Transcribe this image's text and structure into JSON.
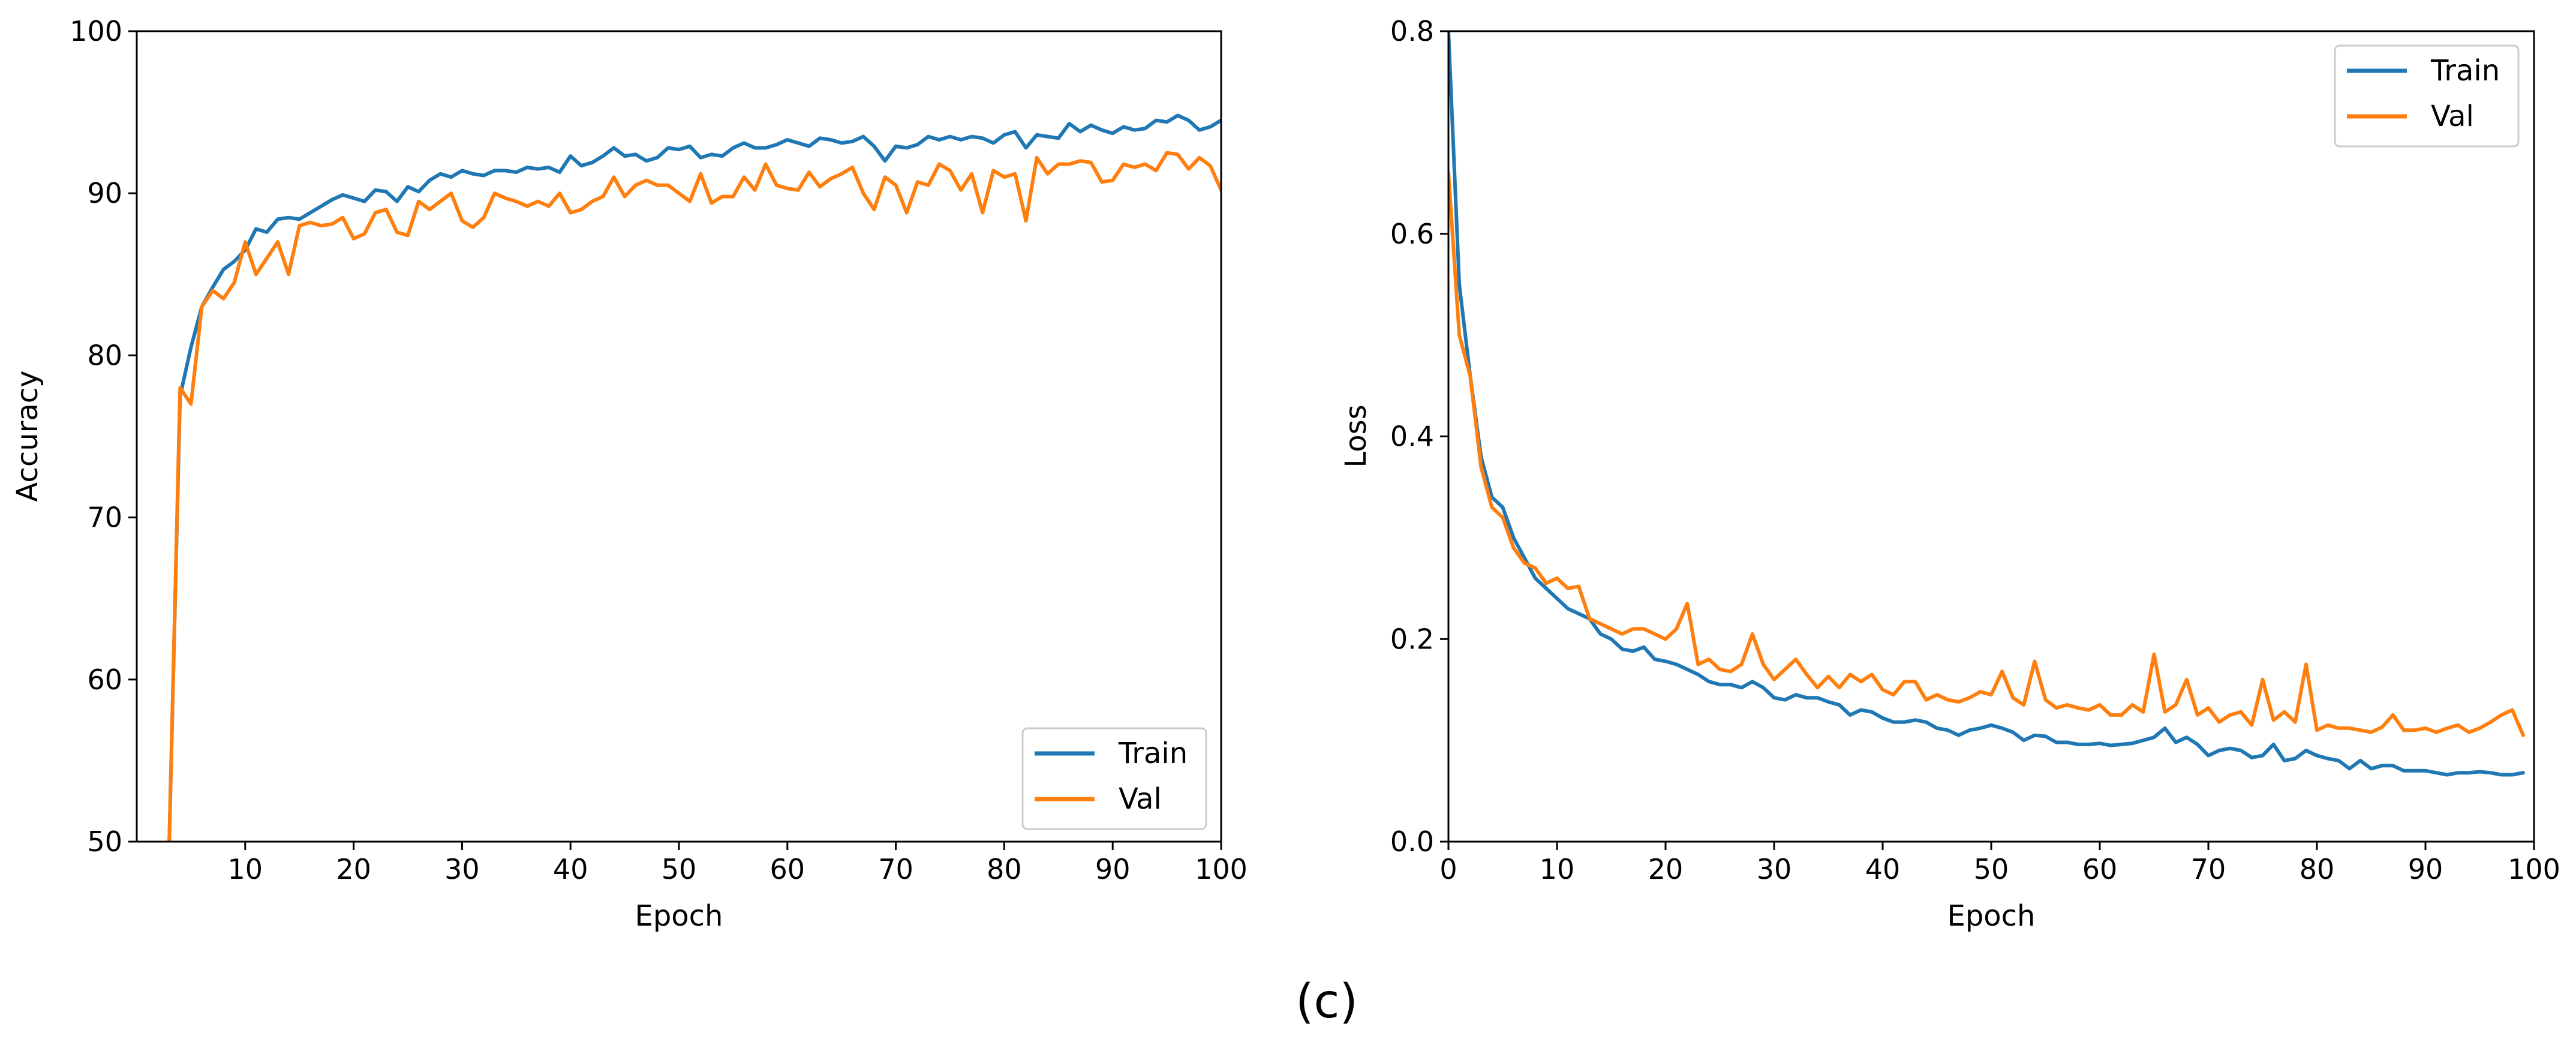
{
  "colors": {
    "train": "#1f77b4",
    "val": "#ff7f0e",
    "axis": "#000000",
    "background": "#ffffff"
  },
  "caption": "(c)",
  "chart_data": [
    {
      "type": "line",
      "title": "",
      "xlabel": "Epoch",
      "ylabel": "Accuracy",
      "xlim": [
        0,
        100
      ],
      "ylim": [
        50,
        100
      ],
      "xticks": [
        10,
        20,
        30,
        40,
        50,
        60,
        70,
        80,
        90,
        100
      ],
      "yticks": [
        50,
        60,
        70,
        80,
        90,
        100
      ],
      "grid": false,
      "legend": "lower-right",
      "x": [
        3,
        4,
        5,
        6,
        7,
        8,
        9,
        10,
        11,
        12,
        13,
        14,
        15,
        16,
        17,
        18,
        19,
        20,
        21,
        22,
        23,
        24,
        25,
        26,
        27,
        28,
        29,
        30,
        31,
        32,
        33,
        34,
        35,
        36,
        37,
        38,
        39,
        40,
        41,
        42,
        43,
        44,
        45,
        46,
        47,
        48,
        49,
        50,
        51,
        52,
        53,
        54,
        55,
        56,
        57,
        58,
        59,
        60,
        61,
        62,
        63,
        64,
        65,
        66,
        67,
        68,
        69,
        70,
        71,
        72,
        73,
        74,
        75,
        76,
        77,
        78,
        79,
        80,
        81,
        82,
        83,
        84,
        85,
        86,
        87,
        88,
        89,
        90,
        91,
        92,
        93,
        94,
        95,
        96,
        97,
        98,
        99,
        100
      ],
      "series": [
        {
          "name": "Train",
          "color_key": "train",
          "values": [
            50.0,
            77.5,
            80.5,
            83.0,
            84.2,
            85.3,
            85.8,
            86.5,
            87.8,
            87.6,
            88.4,
            88.5,
            88.4,
            88.8,
            89.2,
            89.6,
            89.9,
            89.7,
            89.5,
            90.2,
            90.1,
            89.5,
            90.4,
            90.1,
            90.8,
            91.2,
            91.0,
            91.4,
            91.2,
            91.1,
            91.4,
            91.4,
            91.3,
            91.6,
            91.5,
            91.6,
            91.3,
            92.3,
            91.7,
            91.9,
            92.3,
            92.8,
            92.3,
            92.4,
            92.0,
            92.2,
            92.8,
            92.7,
            92.9,
            92.2,
            92.4,
            92.3,
            92.8,
            93.1,
            92.8,
            92.8,
            93.0,
            93.3,
            93.1,
            92.9,
            93.4,
            93.3,
            93.1,
            93.2,
            93.5,
            92.9,
            92.0,
            92.9,
            92.8,
            93.0,
            93.5,
            93.3,
            93.5,
            93.3,
            93.5,
            93.4,
            93.1,
            93.6,
            93.8,
            92.8,
            93.6,
            93.5,
            93.4,
            94.3,
            93.8,
            94.2,
            93.9,
            93.7,
            94.1,
            93.9,
            94.0,
            94.5,
            94.4,
            94.8,
            94.5,
            93.9,
            94.1,
            94.5
          ]
        },
        {
          "name": "Val",
          "color_key": "val",
          "values": [
            50.0,
            78.0,
            77.0,
            83.0,
            84.0,
            83.5,
            84.5,
            87.0,
            85.0,
            86.0,
            87.0,
            85.0,
            88.0,
            88.2,
            88.0,
            88.1,
            88.5,
            87.2,
            87.5,
            88.8,
            89.0,
            87.6,
            87.4,
            89.5,
            89.0,
            89.5,
            90.0,
            88.3,
            87.9,
            88.5,
            90.0,
            89.7,
            89.5,
            89.2,
            89.5,
            89.2,
            90.0,
            88.8,
            89.0,
            89.5,
            89.8,
            91.0,
            89.8,
            90.5,
            90.8,
            90.5,
            90.5,
            90.0,
            89.5,
            91.2,
            89.4,
            89.8,
            89.8,
            91.0,
            90.2,
            91.8,
            90.5,
            90.3,
            90.2,
            91.3,
            90.4,
            90.9,
            91.2,
            91.6,
            90.0,
            89.0,
            91.0,
            90.5,
            88.8,
            90.7,
            90.5,
            91.8,
            91.4,
            90.2,
            91.2,
            88.8,
            91.4,
            91.0,
            91.2,
            88.3,
            92.2,
            91.2,
            91.8,
            91.8,
            92.0,
            91.9,
            90.7,
            90.8,
            91.8,
            91.6,
            91.8,
            91.4,
            92.5,
            92.4,
            91.5,
            92.2,
            91.7,
            90.2
          ]
        }
      ]
    },
    {
      "type": "line",
      "title": "",
      "xlabel": "Epoch",
      "ylabel": "Loss",
      "xlim": [
        0,
        100
      ],
      "ylim": [
        0.0,
        0.8
      ],
      "xticks": [
        0,
        10,
        20,
        30,
        40,
        50,
        60,
        70,
        80,
        90,
        100
      ],
      "yticks": [
        0.0,
        0.2,
        0.4,
        0.6,
        0.8
      ],
      "grid": false,
      "legend": "upper-right",
      "x": [
        0,
        1,
        2,
        3,
        4,
        5,
        6,
        7,
        8,
        9,
        10,
        11,
        12,
        13,
        14,
        15,
        16,
        17,
        18,
        19,
        20,
        21,
        22,
        23,
        24,
        25,
        26,
        27,
        28,
        29,
        30,
        31,
        32,
        33,
        34,
        35,
        36,
        37,
        38,
        39,
        40,
        41,
        42,
        43,
        44,
        45,
        46,
        47,
        48,
        49,
        50,
        51,
        52,
        53,
        54,
        55,
        56,
        57,
        58,
        59,
        60,
        61,
        62,
        63,
        64,
        65,
        66,
        67,
        68,
        69,
        70,
        71,
        72,
        73,
        74,
        75,
        76,
        77,
        78,
        79,
        80,
        81,
        82,
        83,
        84,
        85,
        86,
        87,
        88,
        89,
        90,
        91,
        92,
        93,
        94,
        95,
        96,
        97,
        98,
        99
      ],
      "series": [
        {
          "name": "Train",
          "color_key": "train",
          "values": [
            0.8,
            0.55,
            0.46,
            0.38,
            0.34,
            0.33,
            0.3,
            0.28,
            0.26,
            0.25,
            0.24,
            0.23,
            0.225,
            0.22,
            0.205,
            0.2,
            0.19,
            0.188,
            0.192,
            0.18,
            0.178,
            0.175,
            0.17,
            0.165,
            0.158,
            0.155,
            0.155,
            0.152,
            0.158,
            0.152,
            0.142,
            0.14,
            0.145,
            0.142,
            0.142,
            0.138,
            0.135,
            0.125,
            0.13,
            0.128,
            0.122,
            0.118,
            0.118,
            0.12,
            0.118,
            0.112,
            0.11,
            0.105,
            0.11,
            0.112,
            0.115,
            0.112,
            0.108,
            0.1,
            0.105,
            0.104,
            0.098,
            0.098,
            0.096,
            0.096,
            0.097,
            0.095,
            0.096,
            0.097,
            0.1,
            0.103,
            0.112,
            0.098,
            0.103,
            0.096,
            0.085,
            0.09,
            0.092,
            0.09,
            0.083,
            0.085,
            0.096,
            0.08,
            0.082,
            0.09,
            0.085,
            0.082,
            0.08,
            0.072,
            0.08,
            0.072,
            0.075,
            0.075,
            0.07,
            0.07,
            0.07,
            0.068,
            0.066,
            0.068,
            0.068,
            0.069,
            0.068,
            0.066,
            0.066,
            0.068
          ]
        },
        {
          "name": "Val",
          "color_key": "val",
          "values": [
            0.66,
            0.5,
            0.46,
            0.37,
            0.33,
            0.32,
            0.29,
            0.275,
            0.27,
            0.255,
            0.26,
            0.25,
            0.252,
            0.22,
            0.215,
            0.21,
            0.205,
            0.21,
            0.21,
            0.205,
            0.2,
            0.21,
            0.235,
            0.175,
            0.18,
            0.17,
            0.168,
            0.175,
            0.205,
            0.175,
            0.16,
            0.17,
            0.18,
            0.165,
            0.152,
            0.163,
            0.152,
            0.165,
            0.158,
            0.165,
            0.15,
            0.145,
            0.158,
            0.158,
            0.14,
            0.145,
            0.14,
            0.138,
            0.142,
            0.148,
            0.145,
            0.168,
            0.142,
            0.135,
            0.178,
            0.14,
            0.132,
            0.135,
            0.132,
            0.13,
            0.135,
            0.125,
            0.125,
            0.135,
            0.128,
            0.185,
            0.128,
            0.135,
            0.16,
            0.125,
            0.132,
            0.118,
            0.125,
            0.128,
            0.115,
            0.16,
            0.12,
            0.128,
            0.118,
            0.175,
            0.11,
            0.115,
            0.112,
            0.112,
            0.11,
            0.108,
            0.113,
            0.125,
            0.11,
            0.11,
            0.112,
            0.108,
            0.112,
            0.115,
            0.108,
            0.112,
            0.118,
            0.125,
            0.13,
            0.105
          ]
        }
      ]
    }
  ]
}
